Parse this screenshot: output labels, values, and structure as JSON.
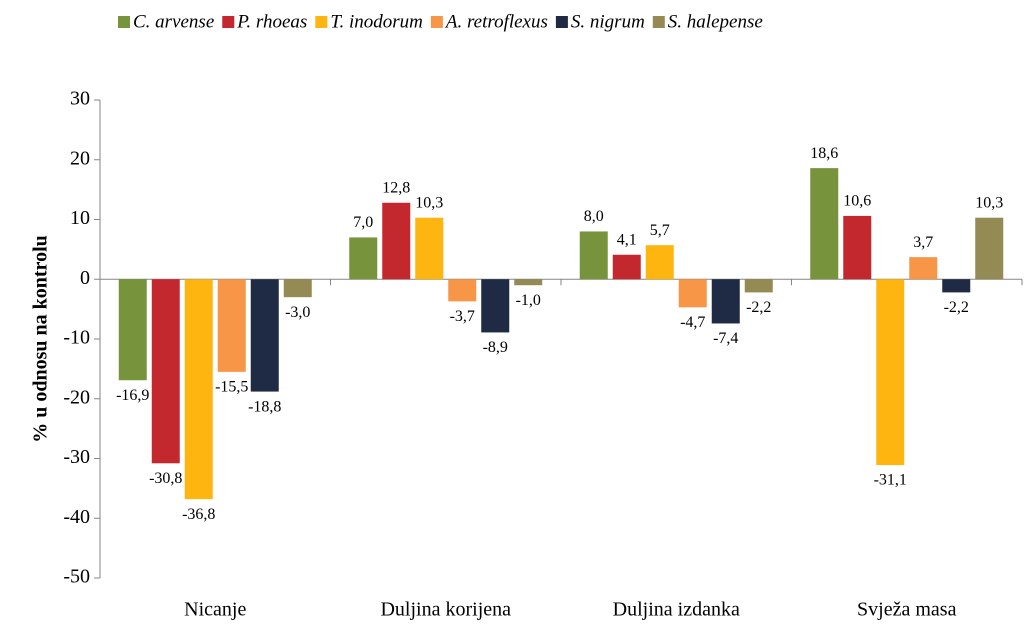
{
  "chart_data": {
    "type": "bar",
    "ylabel": "% u odnosu na kontrolu",
    "categories": [
      "Nicanje",
      "Duljina korijena",
      "Duljina izdanka",
      "Svježa masa"
    ],
    "series": [
      {
        "name": "C. arvense",
        "color": "#77933c",
        "values": [
          -16.9,
          7.0,
          8.0,
          18.6
        ],
        "value_labels": [
          "-16,9",
          "7,0",
          "8,0",
          "18,6"
        ]
      },
      {
        "name": "P. rhoeas",
        "color": "#c3282e",
        "values": [
          -30.8,
          12.8,
          4.1,
          10.6
        ],
        "value_labels": [
          "-30,8",
          "12,8",
          "4,1",
          "10,6"
        ]
      },
      {
        "name": "T. inodorum",
        "color": "#ffb50f",
        "values": [
          -36.8,
          10.3,
          5.7,
          -31.1
        ],
        "value_labels": [
          "-36,8",
          "10,3",
          "5,7",
          "-31,1"
        ]
      },
      {
        "name": "A. retroflexus",
        "color": "#f79646",
        "values": [
          -15.5,
          -3.7,
          -4.7,
          3.7
        ],
        "value_labels": [
          "-15,5",
          "-3,7",
          "-4,7",
          "3,7"
        ]
      },
      {
        "name": "S. nigrum",
        "color": "#1f2a44",
        "values": [
          -18.8,
          -8.9,
          -7.4,
          -2.2
        ],
        "value_labels": [
          "-18,8",
          "-8,9",
          "-7,4",
          "-2,2"
        ]
      },
      {
        "name": "S. halepense",
        "color": "#948a54",
        "values": [
          -3.0,
          -1.0,
          -2.2,
          10.3
        ],
        "value_labels": [
          "-3,0",
          "-1,0",
          "-2,2",
          "10,3"
        ]
      }
    ],
    "ylim": [
      -50,
      30
    ],
    "yticks": [
      -50,
      -40,
      -30,
      -20,
      -10,
      0,
      10,
      20,
      30
    ],
    "grid": false,
    "legend": "top"
  }
}
